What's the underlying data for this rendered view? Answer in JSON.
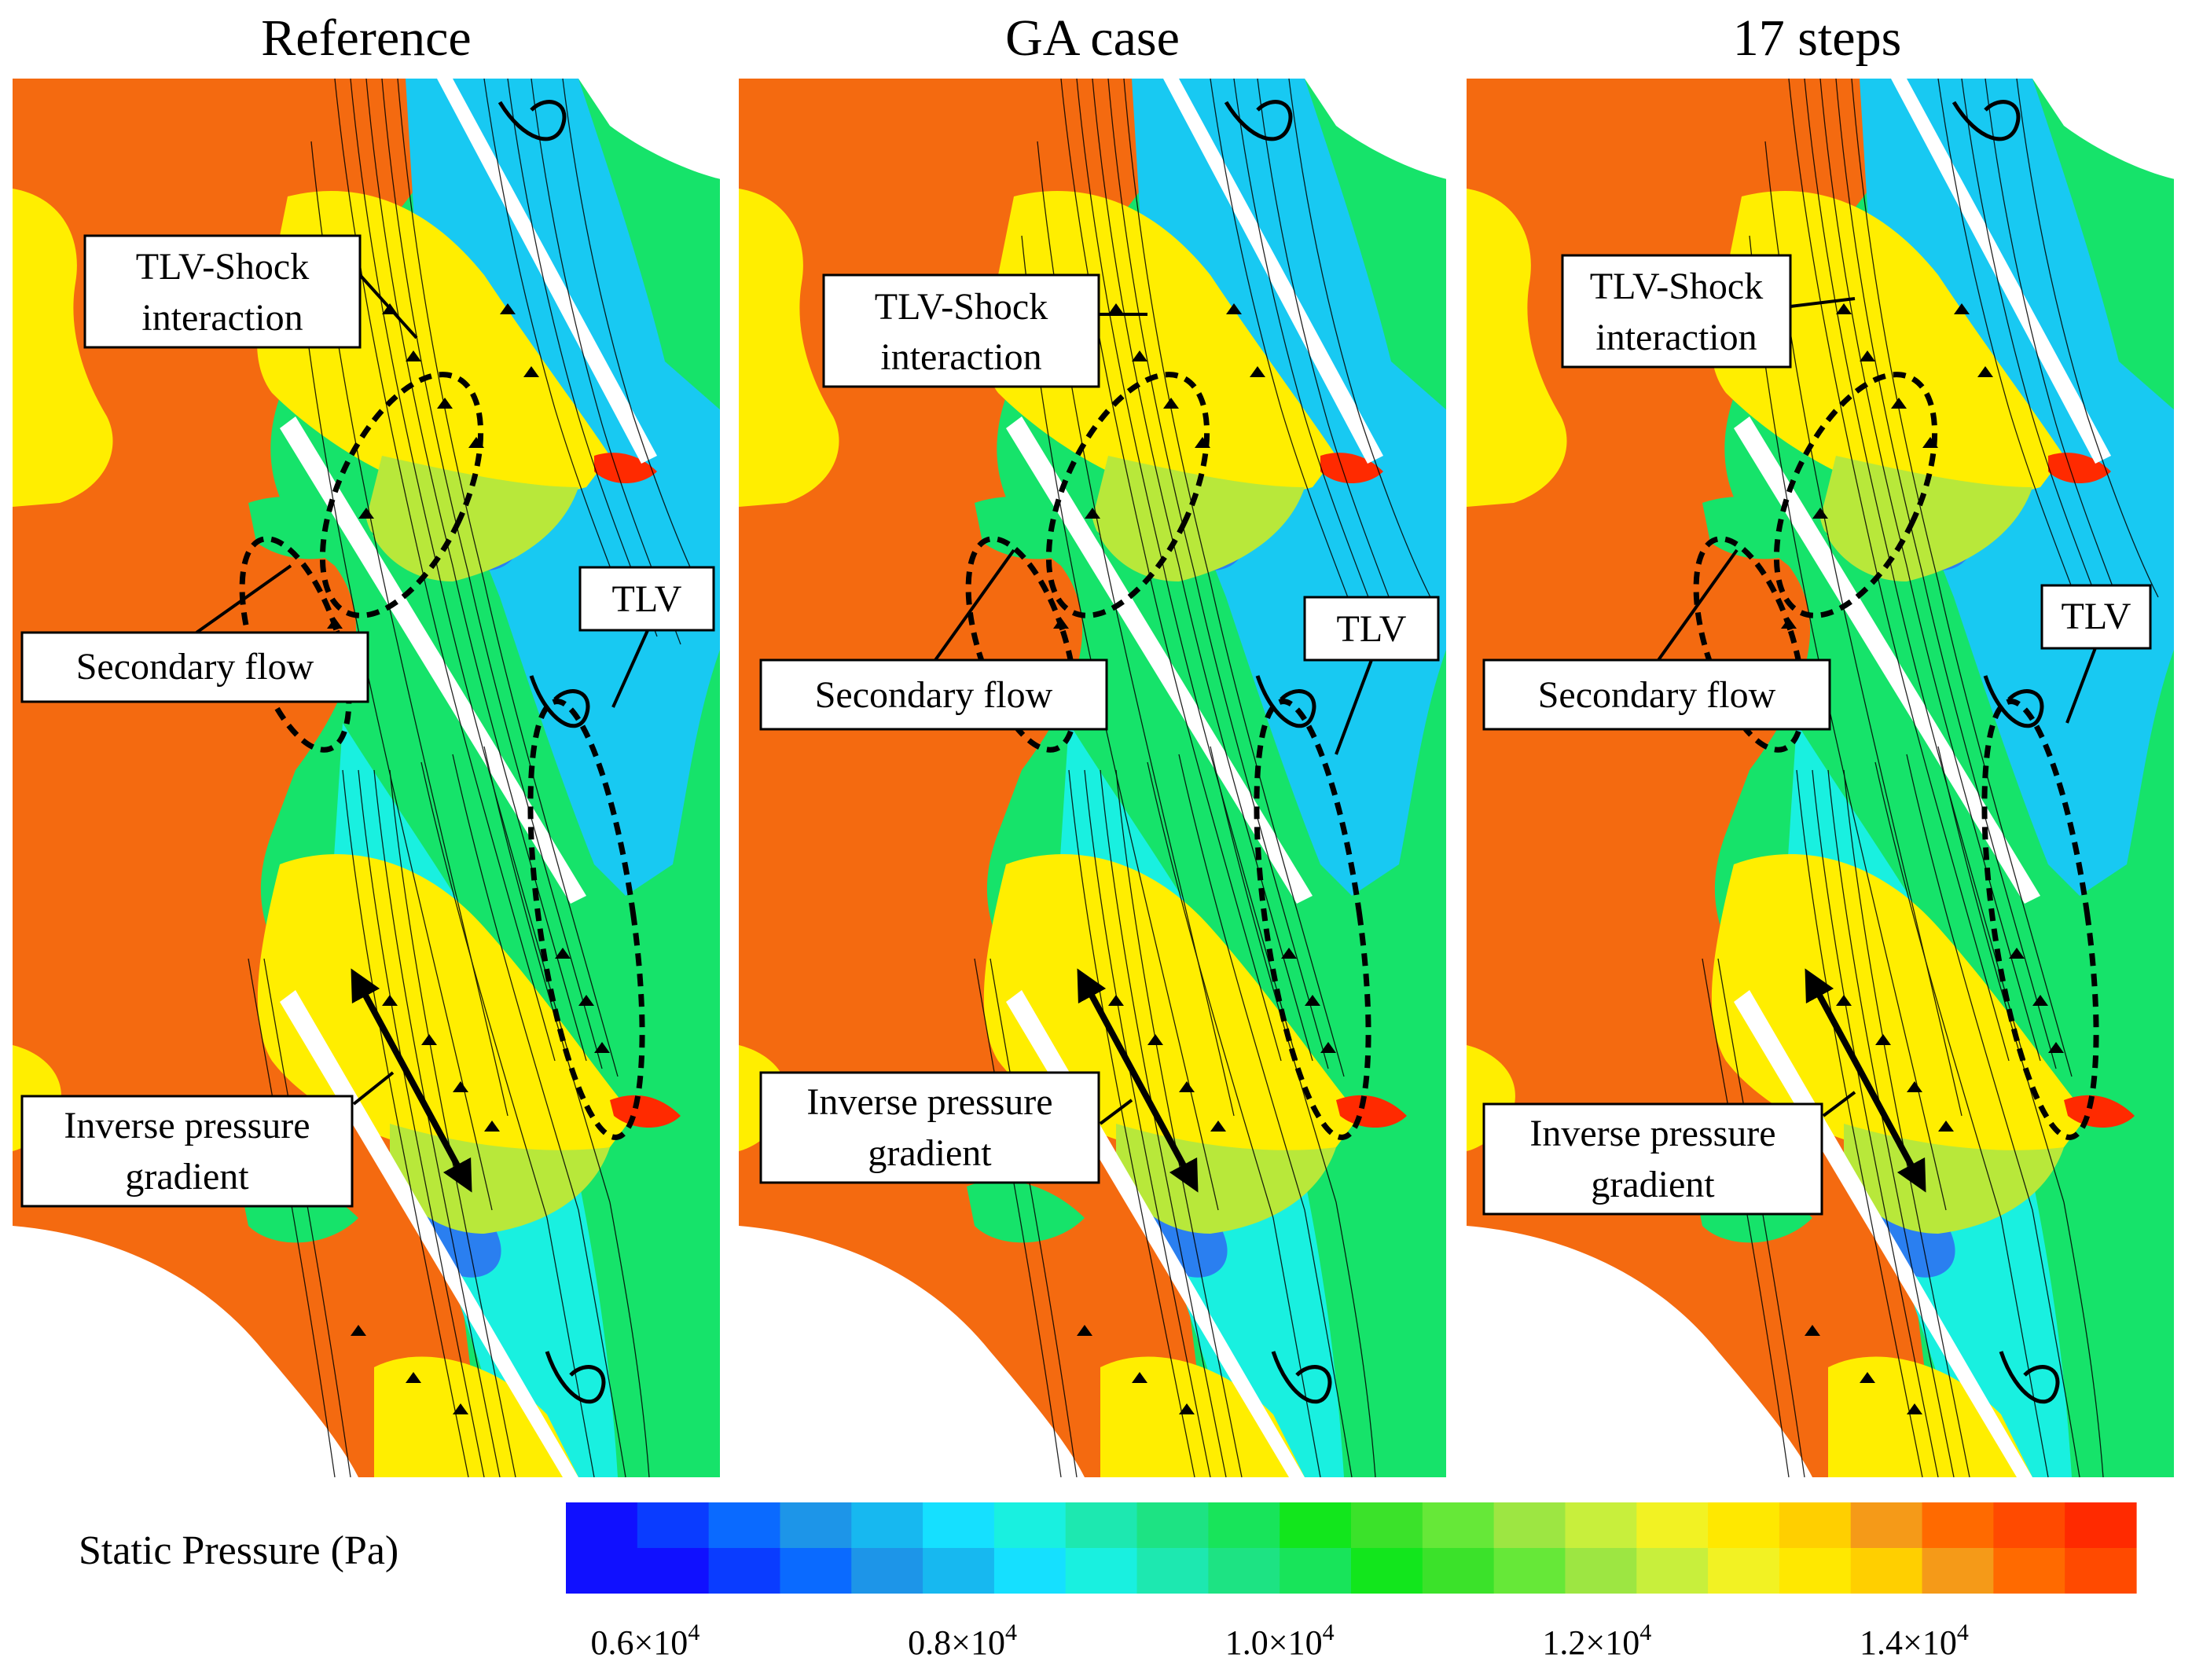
{
  "panels": [
    {
      "title": "Reference"
    },
    {
      "title": "GA case"
    },
    {
      "title": "17 steps"
    }
  ],
  "annotations": {
    "tlv_shock": [
      "TLV-Shock",
      "interaction"
    ],
    "tlv": "TLV",
    "secondary_flow": "Secondary flow",
    "inverse_pressure": [
      "Inverse pressure",
      "gradient"
    ]
  },
  "colorbar": {
    "label": "Static Pressure (Pa)",
    "ticks": [
      {
        "mantissa": "0.6×10",
        "exp": "4",
        "value": 6000
      },
      {
        "mantissa": "0.8×10",
        "exp": "4",
        "value": 8000
      },
      {
        "mantissa": "1.0×10",
        "exp": "4",
        "value": 10000
      },
      {
        "mantissa": "1.2×10",
        "exp": "4",
        "value": 12000
      },
      {
        "mantissa": "1.4×10",
        "exp": "4",
        "value": 14000
      }
    ],
    "colors": [
      "#1010ff",
      "#0a3cff",
      "#0a6aff",
      "#1d95e8",
      "#17b8f0",
      "#15e0ff",
      "#19f0e0",
      "#1de8b0",
      "#1de383",
      "#18e45a",
      "#12e61c",
      "#3be22a",
      "#66e838",
      "#9de642",
      "#c8ef3c",
      "#f2f223",
      "#ffe800",
      "#ffcf00",
      "#f59a18",
      "#ff6a00",
      "#ff4a00",
      "#ff2a00"
    ]
  },
  "legend_palette": {
    "red": "#ff2a00",
    "orange": "#f46a10",
    "yellow": "#ffee00",
    "lightyellow": "#f6ee7a",
    "lime": "#b8e83a",
    "green": "#16e36a",
    "aqua": "#19f0e0",
    "cyan": "#18c9f2",
    "blue": "#2a7ff0"
  }
}
